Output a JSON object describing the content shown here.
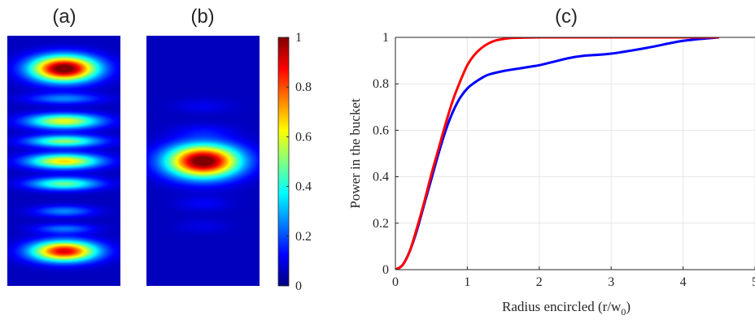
{
  "panels": {
    "a": {
      "label": "(a)"
    },
    "b": {
      "label": "(b)"
    },
    "c": {
      "label": "(c)"
    }
  },
  "colorbar": {
    "range": [
      0,
      1
    ],
    "ticks": [
      0,
      0.2,
      0.4,
      0.6,
      0.8,
      1
    ],
    "tick_labels": [
      "0",
      "0.2",
      "0.4",
      "0.6",
      "0.8",
      "1"
    ],
    "colormap": "jet"
  },
  "chart_data": {
    "type": "line",
    "title": "(c)",
    "xlabel_main": "Radius encircled (r/w",
    "xlabel_sub": "0",
    "xlabel_close": ")",
    "ylabel": "Power in the bucket",
    "xlim": [
      0,
      5
    ],
    "ylim": [
      0,
      1
    ],
    "xticks": [
      0,
      1,
      2,
      3,
      4,
      5
    ],
    "xtick_labels": [
      "0",
      "1",
      "2",
      "3",
      "4",
      "5"
    ],
    "yticks": [
      0,
      0.2,
      0.4,
      0.6,
      0.8,
      1
    ],
    "ytick_labels": [
      "0",
      "0.2",
      "0.4",
      "0.6",
      "0.8",
      "1"
    ],
    "grid": true,
    "series": [
      {
        "color": "#0000ff",
        "x": [
          0,
          0.1,
          0.2,
          0.3,
          0.4,
          0.5,
          0.6,
          0.7,
          0.8,
          0.9,
          1.0,
          1.1,
          1.2,
          1.3,
          1.5,
          1.7,
          1.9,
          2.0,
          2.2,
          2.4,
          2.6,
          3.0,
          3.5,
          4.0,
          4.5
        ],
        "y": [
          0,
          0.02,
          0.08,
          0.17,
          0.28,
          0.39,
          0.5,
          0.6,
          0.68,
          0.74,
          0.78,
          0.805,
          0.825,
          0.84,
          0.855,
          0.865,
          0.875,
          0.88,
          0.895,
          0.91,
          0.92,
          0.93,
          0.955,
          0.985,
          1.0
        ]
      },
      {
        "color": "#ff0000",
        "x": [
          0,
          0.1,
          0.2,
          0.3,
          0.4,
          0.5,
          0.6,
          0.7,
          0.8,
          0.9,
          1.0,
          1.1,
          1.2,
          1.3,
          1.4,
          1.5,
          1.6,
          1.8,
          2.0,
          2.5,
          3.0,
          3.5,
          4.0,
          4.5
        ],
        "y": [
          0,
          0.02,
          0.08,
          0.18,
          0.29,
          0.41,
          0.52,
          0.63,
          0.73,
          0.81,
          0.88,
          0.925,
          0.955,
          0.975,
          0.987,
          0.993,
          0.997,
          0.999,
          1.0,
          1.0,
          1.0,
          1.0,
          1.0,
          1.0
        ]
      }
    ]
  },
  "beam_a": {
    "spots": [
      {
        "cy": 0.13,
        "amp": 1.0,
        "sx": 0.2,
        "sy": 0.035
      },
      {
        "cy": 0.25,
        "amp": 0.2,
        "sx": 0.22,
        "sy": 0.015
      },
      {
        "cy": 0.34,
        "amp": 0.55,
        "sx": 0.22,
        "sy": 0.02
      },
      {
        "cy": 0.42,
        "amp": 0.45,
        "sx": 0.22,
        "sy": 0.016
      },
      {
        "cy": 0.5,
        "amp": 0.6,
        "sx": 0.22,
        "sy": 0.02
      },
      {
        "cy": 0.59,
        "amp": 0.42,
        "sx": 0.21,
        "sy": 0.017
      },
      {
        "cy": 0.7,
        "amp": 0.2,
        "sx": 0.18,
        "sy": 0.015
      },
      {
        "cy": 0.77,
        "amp": 0.18,
        "sx": 0.18,
        "sy": 0.013
      },
      {
        "cy": 0.86,
        "amp": 0.85,
        "sx": 0.2,
        "sy": 0.028
      }
    ]
  },
  "beam_b": {
    "spots": [
      {
        "cy": 0.5,
        "amp": 1.0,
        "sx": 0.22,
        "sy": 0.045
      },
      {
        "cy": 0.28,
        "amp": 0.05,
        "sx": 0.18,
        "sy": 0.02
      },
      {
        "cy": 0.38,
        "amp": 0.06,
        "sx": 0.18,
        "sy": 0.02
      },
      {
        "cy": 0.67,
        "amp": 0.06,
        "sx": 0.16,
        "sy": 0.02
      },
      {
        "cy": 0.76,
        "amp": 0.04,
        "sx": 0.16,
        "sy": 0.02
      }
    ]
  }
}
